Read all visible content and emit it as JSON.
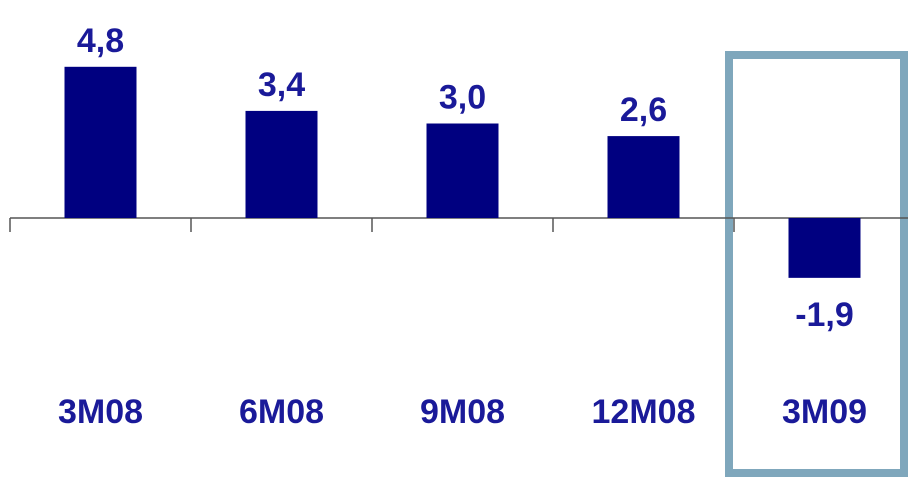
{
  "chart_data": {
    "type": "bar",
    "categories": [
      "3M08",
      "6M08",
      "9M08",
      "12M08",
      "3M09"
    ],
    "values": [
      4.8,
      3.4,
      3.0,
      2.6,
      -1.9
    ],
    "value_labels": [
      "4,8",
      "3,4",
      "3,0",
      "2,6",
      "-1,9"
    ],
    "title": "",
    "xlabel": "",
    "ylabel": "",
    "ylim": [
      -6,
      6
    ],
    "grid": false,
    "highlight_category": "3M09",
    "colors": {
      "bar": "#000080",
      "text": "#1a1a99",
      "axis": "#555555",
      "highlight_border": "#7fa7bc"
    }
  }
}
